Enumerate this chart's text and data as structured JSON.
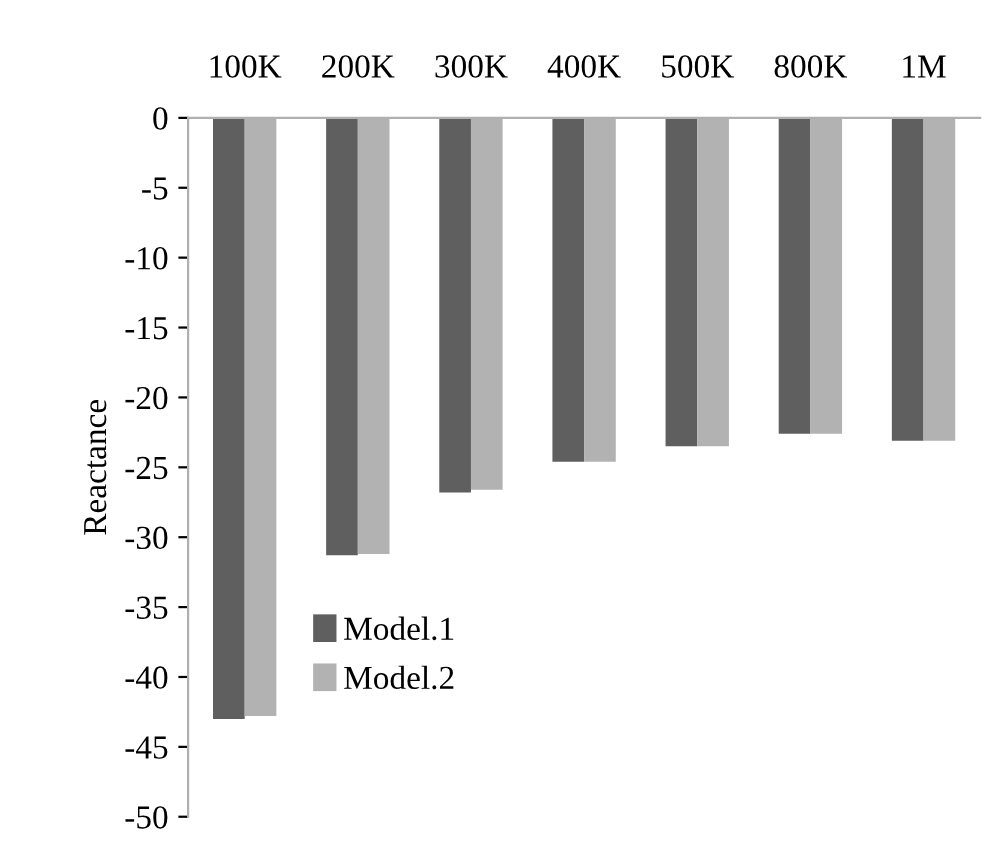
{
  "chart_data": {
    "type": "bar",
    "ylabel": "Reactance",
    "categories": [
      "100K",
      "200K",
      "300K",
      "400K",
      "500K",
      "800K",
      "1M"
    ],
    "series": [
      {
        "name": "Model.1",
        "color": "#5f5f5f",
        "values": [
          -43.0,
          -31.3,
          -26.8,
          -24.6,
          -23.5,
          -22.6,
          -23.1
        ]
      },
      {
        "name": "Model.2",
        "color": "#b2b2b2",
        "values": [
          -42.8,
          -31.2,
          -26.6,
          -24.6,
          -23.5,
          -22.6,
          -23.1
        ]
      }
    ],
    "ylim": [
      -50,
      0
    ],
    "yticks": [
      -50,
      -45,
      -40,
      -35,
      -30,
      -25,
      -20,
      -15,
      -10,
      -5,
      0
    ],
    "grid": false,
    "legend": "bottom left"
  }
}
